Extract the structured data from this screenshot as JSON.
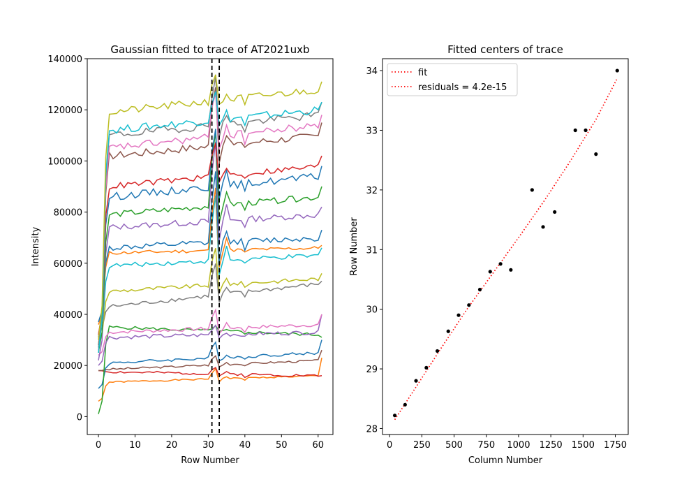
{
  "chart_data": [
    {
      "type": "line",
      "title": "Gaussian fitted to trace of AT2021uxb",
      "xlabel": "Row Number",
      "ylabel": "Intensity",
      "xlim": [
        -3.05,
        64.05
      ],
      "ylim": [
        -7000,
        140000
      ],
      "xticks": [
        0,
        10,
        20,
        30,
        40,
        50,
        60
      ],
      "yticks": [
        0,
        20000,
        40000,
        60000,
        80000,
        100000,
        120000,
        140000
      ],
      "grid": false,
      "vlines": [
        {
          "x": 31,
          "style": "dashed",
          "color": "#000000"
        },
        {
          "x": 33,
          "style": "dashed",
          "color": "#000000"
        }
      ],
      "x": [
        0,
        1,
        2,
        3,
        4,
        5,
        6,
        7,
        8,
        9,
        10,
        11,
        12,
        13,
        14,
        15,
        16,
        17,
        18,
        19,
        20,
        21,
        22,
        23,
        24,
        25,
        26,
        27,
        28,
        29,
        30,
        31,
        32,
        33,
        34,
        35,
        36,
        37,
        38,
        39,
        40,
        41,
        42,
        43,
        44,
        45,
        46,
        47,
        48,
        49,
        50,
        51,
        52,
        53,
        54,
        55,
        56,
        57,
        58,
        59,
        60,
        61
      ],
      "series_profiles": [
        {
          "color": "#ff7f0e",
          "base": 6000,
          "level": 13500,
          "end": 16000,
          "spike": 4000,
          "last": 23000,
          "wiggle": 300,
          "seed": 1
        },
        {
          "color": "#d62728",
          "base": 18000,
          "level": 17500,
          "end": 16000,
          "spike": 2500,
          "last": 16000,
          "wiggle": 500,
          "seed": 2
        },
        {
          "color": "#8c564b",
          "base": 18000,
          "level": 18500,
          "end": 22000,
          "spike": 3500,
          "last": 26000,
          "wiggle": 400,
          "seed": 3
        },
        {
          "color": "#1f77b4",
          "base": 11000,
          "level": 21000,
          "end": 25000,
          "spike": 6000,
          "last": 30000,
          "wiggle": 600,
          "seed": 4
        },
        {
          "color": "#2ca02c",
          "base": 1000,
          "level": 35000,
          "end": 32000,
          "spike": 2000,
          "last": 31000,
          "wiggle": 600,
          "seed": 5
        },
        {
          "color": "#9467bd",
          "base": 20000,
          "level": 31000,
          "end": 33000,
          "spike": 3500,
          "last": 40000,
          "wiggle": 800,
          "seed": 6
        },
        {
          "color": "#e377c2",
          "base": 24000,
          "level": 33000,
          "end": 36000,
          "spike": 7000,
          "last": 40000,
          "wiggle": 700,
          "seed": 7
        },
        {
          "color": "#7f7f7f",
          "base": 33000,
          "level": 43000,
          "end": 52000,
          "spike": 12000,
          "last": 53000,
          "wiggle": 800,
          "seed": 8
        },
        {
          "color": "#bcbd22",
          "base": 29000,
          "level": 49000,
          "end": 54000,
          "spike": 14000,
          "last": 56000,
          "wiggle": 800,
          "seed": 9
        },
        {
          "color": "#17becf",
          "base": 28000,
          "level": 59000,
          "end": 63000,
          "spike": 25000,
          "last": 66000,
          "wiggle": 900,
          "seed": 10
        },
        {
          "color": "#ff7f0e",
          "base": 36000,
          "level": 64000,
          "end": 66000,
          "spike": 24000,
          "last": 67000,
          "wiggle": 700,
          "seed": 11
        },
        {
          "color": "#1f77b4",
          "base": 37000,
          "level": 66000,
          "end": 70000,
          "spike": 27000,
          "last": 73000,
          "wiggle": 1200,
          "seed": 12
        },
        {
          "color": "#9467bd",
          "base": 22000,
          "level": 74000,
          "end": 79000,
          "spike": 30000,
          "last": 82000,
          "wiggle": 1200,
          "seed": 13
        },
        {
          "color": "#2ca02c",
          "base": 25000,
          "level": 79000,
          "end": 86000,
          "spike": 28000,
          "last": 90000,
          "wiggle": 1200,
          "seed": 14
        },
        {
          "color": "#1f77b4",
          "base": 31000,
          "level": 86000,
          "end": 94000,
          "spike": 24000,
          "last": 98000,
          "wiggle": 1500,
          "seed": 15
        },
        {
          "color": "#d62728",
          "base": 32000,
          "level": 90000,
          "end": 98000,
          "spike": 14000,
          "last": 102000,
          "wiggle": 1200,
          "seed": 16
        },
        {
          "color": "#8c564b",
          "base": 28000,
          "level": 102000,
          "end": 110000,
          "spike": 24000,
          "last": 115000,
          "wiggle": 1500,
          "seed": 17
        },
        {
          "color": "#e377c2",
          "base": 26000,
          "level": 105000,
          "end": 114000,
          "spike": 18000,
          "last": 118000,
          "wiggle": 1500,
          "seed": 18
        },
        {
          "color": "#7f7f7f",
          "base": 27000,
          "level": 110000,
          "end": 118000,
          "spike": 20000,
          "last": 123000,
          "wiggle": 1500,
          "seed": 19
        },
        {
          "color": "#17becf",
          "base": 25000,
          "level": 112000,
          "end": 120000,
          "spike": 12000,
          "last": 123000,
          "wiggle": 1500,
          "seed": 20
        },
        {
          "color": "#bcbd22",
          "base": 30000,
          "level": 119000,
          "end": 128000,
          "spike": 11000,
          "last": 131000,
          "wiggle": 1500,
          "seed": 21
        }
      ]
    },
    {
      "type": "scatter",
      "title": "Fitted centers of trace",
      "xlabel": "Column Number",
      "ylabel": "Row Number",
      "xlim": [
        -55,
        1850
      ],
      "ylim": [
        27.9,
        34.2
      ],
      "xticks": [
        0,
        250,
        500,
        750,
        1000,
        1250,
        1500,
        1750
      ],
      "yticks": [
        28,
        29,
        30,
        31,
        32,
        33,
        34
      ],
      "grid": false,
      "legend": {
        "placement": "top-left",
        "entries": [
          "fit",
          "residuals = 4.2e-15"
        ]
      },
      "fit_line": {
        "style": "dotted",
        "color": "#ff0000",
        "x": [
          40,
          200,
          400,
          600,
          800,
          1000,
          1200,
          1400,
          1600,
          1760
        ],
        "y": [
          28.15,
          28.68,
          29.35,
          30.0,
          30.6,
          31.2,
          31.82,
          32.48,
          33.18,
          33.85
        ]
      },
      "points": {
        "color": "#000000",
        "x": [
          40,
          120,
          205,
          285,
          370,
          455,
          535,
          615,
          700,
          780,
          860,
          940,
          1105,
          1190,
          1280,
          1440,
          1520,
          1600,
          1765
        ],
        "y": [
          28.22,
          28.4,
          28.8,
          29.02,
          29.3,
          29.63,
          29.9,
          30.07,
          30.33,
          30.63,
          30.76,
          30.66,
          32.0,
          31.38,
          31.63,
          33.0,
          33.0,
          32.6,
          34.0
        ]
      }
    }
  ]
}
